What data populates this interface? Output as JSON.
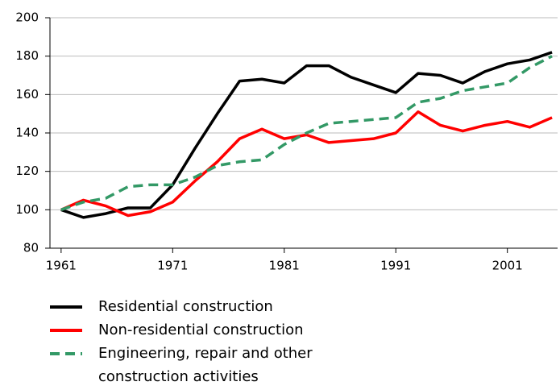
{
  "chart_data": {
    "type": "line",
    "x": [
      1961,
      1963,
      1965,
      1967,
      1969,
      1971,
      1973,
      1975,
      1977,
      1979,
      1981,
      1983,
      1985,
      1987,
      1989,
      1991,
      1993,
      1995,
      1997,
      1999,
      2001,
      2003,
      2005
    ],
    "series": [
      {
        "name": "Residential construction",
        "color": "#000000",
        "dash": false,
        "values": [
          100,
          96,
          98,
          101,
          101,
          113,
          132,
          150,
          167,
          168,
          166,
          175,
          175,
          169,
          165,
          161,
          171,
          170,
          166,
          172,
          176,
          178,
          182
        ]
      },
      {
        "name": "Non-residential construction",
        "color": "#ff0000",
        "dash": false,
        "values": [
          100,
          105,
          102,
          97,
          99,
          104,
          115,
          125,
          137,
          142,
          137,
          139,
          135,
          136,
          137,
          140,
          151,
          144,
          141,
          144,
          146,
          143,
          148
        ]
      },
      {
        "name": "Engineering, repair and other construction activities",
        "color": "#339966",
        "dash": true,
        "values": [
          100,
          104,
          106,
          112,
          113,
          113,
          117,
          123,
          125,
          126,
          134,
          140,
          145,
          146,
          147,
          148,
          156,
          158,
          162,
          164,
          166,
          174,
          180
        ]
      }
    ],
    "xlim": [
      1960,
      2005.5
    ],
    "xticks": [
      1961,
      1971,
      1981,
      1991,
      2001
    ],
    "ylim": [
      80,
      200
    ],
    "yticks": [
      80,
      100,
      120,
      140,
      160,
      180,
      200
    ],
    "grid": true
  }
}
